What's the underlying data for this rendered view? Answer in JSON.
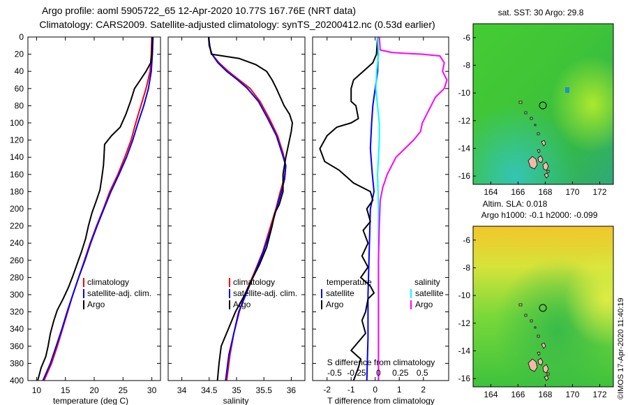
{
  "title": {
    "line1": "Argo profile: aoml 5905722_65 12-Apr-2020 10.77S 167.76E (NRT data)",
    "line2": "Climatology: CARS2009. Satellite-adjusted climatology: synTS_20200412.nc (0.53d earlier)"
  },
  "colors": {
    "climatology": "#ff0000",
    "satellite": "#0000ff",
    "argo": "#000000",
    "sat_salinity": "#00ffff",
    "argo_salinity": "#ff00ff"
  },
  "chart_data": [
    {
      "type": "line",
      "id": "temperature",
      "xlabel": "temperature (deg C)",
      "ylabel": "",
      "xlim": [
        8.5,
        31.5
      ],
      "ylim": [
        400,
        0
      ],
      "xticks": [
        "10",
        "15",
        "20",
        "25",
        "30"
      ],
      "yticks": [
        "0",
        "20",
        "40",
        "60",
        "80",
        "100",
        "120",
        "140",
        "160",
        "180",
        "200",
        "220",
        "240",
        "260",
        "280",
        "300",
        "320",
        "340",
        "360",
        "380",
        "400"
      ],
      "legend": [
        "climatology",
        "satellite-adj. clim.",
        "Argo"
      ],
      "series": [
        {
          "name": "climatology",
          "color": "#ff0000",
          "points": [
            [
              30,
              0
            ],
            [
              29.9,
              20
            ],
            [
              29.7,
              40
            ],
            [
              29.0,
              60
            ],
            [
              28.1,
              80
            ],
            [
              27.2,
              100
            ],
            [
              26.4,
              120
            ],
            [
              25.3,
              140
            ],
            [
              24.1,
              160
            ],
            [
              22.7,
              180
            ],
            [
              21.6,
              200
            ],
            [
              20.4,
              220
            ],
            [
              19.3,
              240
            ],
            [
              18.3,
              260
            ],
            [
              17.3,
              280
            ],
            [
              16.3,
              300
            ],
            [
              15.4,
              320
            ],
            [
              14.5,
              340
            ],
            [
              13.6,
              360
            ],
            [
              12.6,
              380
            ],
            [
              11.3,
              400
            ]
          ]
        },
        {
          "name": "satellite-adj. clim.",
          "color": "#0000ff",
          "points": [
            [
              30.2,
              0
            ],
            [
              30.1,
              20
            ],
            [
              29.9,
              40
            ],
            [
              29.4,
              60
            ],
            [
              28.6,
              80
            ],
            [
              27.6,
              100
            ],
            [
              26.7,
              120
            ],
            [
              25.6,
              140
            ],
            [
              24.3,
              160
            ],
            [
              22.9,
              180
            ],
            [
              21.7,
              200
            ],
            [
              20.5,
              220
            ],
            [
              19.4,
              240
            ],
            [
              18.4,
              260
            ],
            [
              17.3,
              280
            ],
            [
              16.3,
              300
            ],
            [
              15.3,
              320
            ],
            [
              14.4,
              340
            ],
            [
              13.4,
              360
            ],
            [
              12.4,
              380
            ],
            [
              11.1,
              400
            ]
          ]
        },
        {
          "name": "Argo",
          "color": "#000000",
          "points": [
            [
              30.1,
              0
            ],
            [
              30.0,
              20
            ],
            [
              29.8,
              30
            ],
            [
              29.0,
              40
            ],
            [
              28.0,
              50
            ],
            [
              27.0,
              60
            ],
            [
              26.3,
              75
            ],
            [
              25.5,
              90
            ],
            [
              24.5,
              105
            ],
            [
              23.0,
              115
            ],
            [
              21.8,
              125
            ],
            [
              21.7,
              140
            ],
            [
              21.6,
              150
            ],
            [
              21.3,
              165
            ],
            [
              21.0,
              178
            ],
            [
              20.4,
              190
            ],
            [
              19.6,
              205
            ],
            [
              19.0,
              220
            ],
            [
              18.5,
              235
            ],
            [
              17.8,
              250
            ],
            [
              17.0,
              265
            ],
            [
              16.2,
              280
            ],
            [
              15.5,
              292
            ],
            [
              14.6,
              305
            ],
            [
              13.6,
              318
            ],
            [
              13.0,
              330
            ],
            [
              12.4,
              345
            ],
            [
              12.0,
              360
            ],
            [
              11.6,
              372
            ],
            [
              10.8,
              385
            ],
            [
              10.2,
              400
            ]
          ]
        }
      ]
    },
    {
      "type": "line",
      "id": "salinity",
      "xlabel": "salinity",
      "ylabel": "",
      "xlim": [
        33.75,
        36.25
      ],
      "ylim": [
        400,
        0
      ],
      "xticks": [
        "34",
        "34.5",
        "35",
        "35.5",
        "36"
      ],
      "legend": [
        "climatology",
        "satellite-adj. clim.",
        "Argo"
      ],
      "series": [
        {
          "name": "climatology",
          "color": "#ff0000",
          "points": [
            [
              34.49,
              0
            ],
            [
              34.5,
              10
            ],
            [
              34.55,
              20
            ],
            [
              34.68,
              30
            ],
            [
              34.85,
              40
            ],
            [
              35.05,
              50
            ],
            [
              35.25,
              60
            ],
            [
              35.43,
              75
            ],
            [
              35.6,
              95
            ],
            [
              35.75,
              115
            ],
            [
              35.85,
              135
            ],
            [
              35.9,
              150
            ],
            [
              35.87,
              165
            ],
            [
              35.8,
              180
            ],
            [
              35.72,
              200
            ],
            [
              35.6,
              225
            ],
            [
              35.48,
              250
            ],
            [
              35.32,
              275
            ],
            [
              35.15,
              300
            ],
            [
              35.05,
              320
            ],
            [
              34.95,
              345
            ],
            [
              34.88,
              370
            ],
            [
              34.82,
              400
            ]
          ]
        },
        {
          "name": "satellite-adj. clim.",
          "color": "#0000ff",
          "points": [
            [
              34.49,
              0
            ],
            [
              34.5,
              10
            ],
            [
              34.55,
              20
            ],
            [
              34.66,
              30
            ],
            [
              34.82,
              40
            ],
            [
              35.02,
              50
            ],
            [
              35.2,
              60
            ],
            [
              35.4,
              75
            ],
            [
              35.57,
              95
            ],
            [
              35.73,
              115
            ],
            [
              35.83,
              135
            ],
            [
              35.9,
              150
            ],
            [
              35.88,
              165
            ],
            [
              35.82,
              180
            ],
            [
              35.73,
              200
            ],
            [
              35.62,
              225
            ],
            [
              35.49,
              250
            ],
            [
              35.33,
              275
            ],
            [
              35.17,
              300
            ],
            [
              35.04,
              320
            ],
            [
              34.95,
              345
            ],
            [
              34.86,
              370
            ],
            [
              34.8,
              400
            ]
          ]
        },
        {
          "name": "Argo",
          "color": "#000000",
          "points": [
            [
              34.49,
              0
            ],
            [
              34.51,
              10
            ],
            [
              34.54,
              20
            ],
            [
              35.05,
              25
            ],
            [
              35.35,
              32
            ],
            [
              35.55,
              40
            ],
            [
              35.65,
              50
            ],
            [
              35.73,
              60
            ],
            [
              35.8,
              70
            ],
            [
              35.87,
              80
            ],
            [
              35.97,
              90
            ],
            [
              36.02,
              100
            ],
            [
              36.0,
              110
            ],
            [
              35.95,
              125
            ],
            [
              35.9,
              140
            ],
            [
              35.85,
              160
            ],
            [
              35.85,
              180
            ],
            [
              35.78,
              195
            ],
            [
              35.7,
              205
            ],
            [
              35.65,
              220
            ],
            [
              35.55,
              245
            ],
            [
              35.42,
              265
            ],
            [
              35.3,
              280
            ],
            [
              35.15,
              300
            ],
            [
              34.98,
              320
            ],
            [
              34.85,
              340
            ],
            [
              34.72,
              360
            ],
            [
              34.68,
              380
            ],
            [
              34.65,
              400
            ]
          ]
        }
      ]
    },
    {
      "type": "line",
      "id": "differences",
      "xlabel": "T difference from climatology",
      "xlabel_top": "S difference from climatology",
      "xlim": [
        -2.6,
        3.05
      ],
      "ylim": [
        400,
        0
      ],
      "xticks": [
        "-2",
        "-1",
        "0",
        "1",
        "2"
      ],
      "sxlim": [
        -0.75,
        0.8
      ],
      "sxticks": [
        "-0.5",
        "-0.25",
        "0",
        "0.25",
        "0.5"
      ],
      "legend_temperature": {
        "title": "temperature",
        "items": [
          "satellite",
          "Argo"
        ]
      },
      "legend_salinity": {
        "title": "salinity",
        "items": [
          "satellite",
          "Argo"
        ]
      },
      "series": [
        {
          "name": "temperature satellite",
          "color": "#0000ff",
          "points": [
            [
              0.1,
              0
            ],
            [
              0.12,
              20
            ],
            [
              0.1,
              40
            ],
            [
              0.0,
              60
            ],
            [
              -0.1,
              80
            ],
            [
              -0.15,
              100
            ],
            [
              -0.2,
              130
            ],
            [
              -0.12,
              160
            ],
            [
              -0.05,
              180
            ],
            [
              -0.2,
              200
            ],
            [
              -0.25,
              250
            ],
            [
              -0.3,
              300
            ],
            [
              -0.3,
              350
            ],
            [
              -0.35,
              400
            ]
          ]
        },
        {
          "name": "temperature Argo",
          "color": "#000000",
          "points": [
            [
              0.1,
              0
            ],
            [
              0.05,
              20
            ],
            [
              -0.1,
              30
            ],
            [
              -0.5,
              40
            ],
            [
              -0.9,
              50
            ],
            [
              -1.0,
              60
            ],
            [
              -1.0,
              75
            ],
            [
              -0.8,
              80
            ],
            [
              -0.7,
              95
            ],
            [
              -1.0,
              100
            ],
            [
              -1.6,
              105
            ],
            [
              -2.0,
              115
            ],
            [
              -2.3,
              130
            ],
            [
              -2.1,
              145
            ],
            [
              -1.5,
              155
            ],
            [
              -0.9,
              170
            ],
            [
              -0.2,
              180
            ],
            [
              -0.1,
              190
            ],
            [
              -0.35,
              200
            ],
            [
              -0.2,
              215
            ],
            [
              -0.5,
              225
            ],
            [
              -0.3,
              240
            ],
            [
              -0.55,
              255
            ],
            [
              -0.3,
              268
            ],
            [
              -0.6,
              280
            ],
            [
              -0.2,
              290
            ],
            [
              -0.05,
              298
            ],
            [
              -0.3,
              305
            ],
            [
              -0.4,
              320
            ],
            [
              -0.55,
              330
            ],
            [
              -0.4,
              345
            ],
            [
              -0.7,
              355
            ],
            [
              -1.0,
              365
            ],
            [
              -0.6,
              375
            ],
            [
              -0.7,
              385
            ],
            [
              -0.9,
              400
            ]
          ]
        },
        {
          "name": "salinity satellite",
          "color": "#00ffff",
          "points": [
            [
              -0.01,
              0
            ],
            [
              0.0,
              20
            ],
            [
              -0.02,
              40
            ],
            [
              -0.03,
              60
            ],
            [
              -0.01,
              80
            ],
            [
              0.01,
              100
            ],
            [
              0.01,
              120
            ],
            [
              0.0,
              140
            ],
            [
              -0.01,
              160
            ],
            [
              0.0,
              200
            ],
            [
              0.0,
              250
            ],
            [
              0.0,
              300
            ],
            [
              0.0,
              350
            ],
            [
              0.0,
              400
            ]
          ]
        },
        {
          "name": "salinity Argo",
          "color": "#ff00ff",
          "points": [
            [
              0.01,
              0
            ],
            [
              0.02,
              15
            ],
            [
              0.15,
              18
            ],
            [
              0.3,
              19
            ],
            [
              0.5,
              20
            ],
            [
              0.7,
              22
            ],
            [
              0.75,
              30
            ],
            [
              0.73,
              40
            ],
            [
              0.78,
              50
            ],
            [
              0.75,
              60
            ],
            [
              0.65,
              70
            ],
            [
              0.6,
              80
            ],
            [
              0.55,
              90
            ],
            [
              0.5,
              100
            ],
            [
              0.48,
              110
            ],
            [
              0.4,
              120
            ],
            [
              0.3,
              130
            ],
            [
              0.2,
              140
            ],
            [
              0.15,
              150
            ],
            [
              0.1,
              160
            ],
            [
              0.05,
              175
            ],
            [
              0.02,
              190
            ],
            [
              0.01,
              220
            ],
            [
              0.0,
              260
            ],
            [
              0.0,
              300
            ],
            [
              0.0,
              400
            ]
          ]
        }
      ]
    }
  ],
  "maps": {
    "sst": {
      "title": "sat. SST: 30 Argo: 29.8"
    },
    "sla": {
      "title_line1": "Altim. SLA: 0.018",
      "title_line2": "Argo h1000: -0.1 h2000: -0.099"
    },
    "lon_ticks": [
      "164",
      "166",
      "168",
      "170",
      "172"
    ],
    "lat_ticks": [
      "-6",
      "-8",
      "-10",
      "-12",
      "-14",
      "-16"
    ]
  },
  "credit": "©IMOS 17-Apr-2020 11:40:19"
}
